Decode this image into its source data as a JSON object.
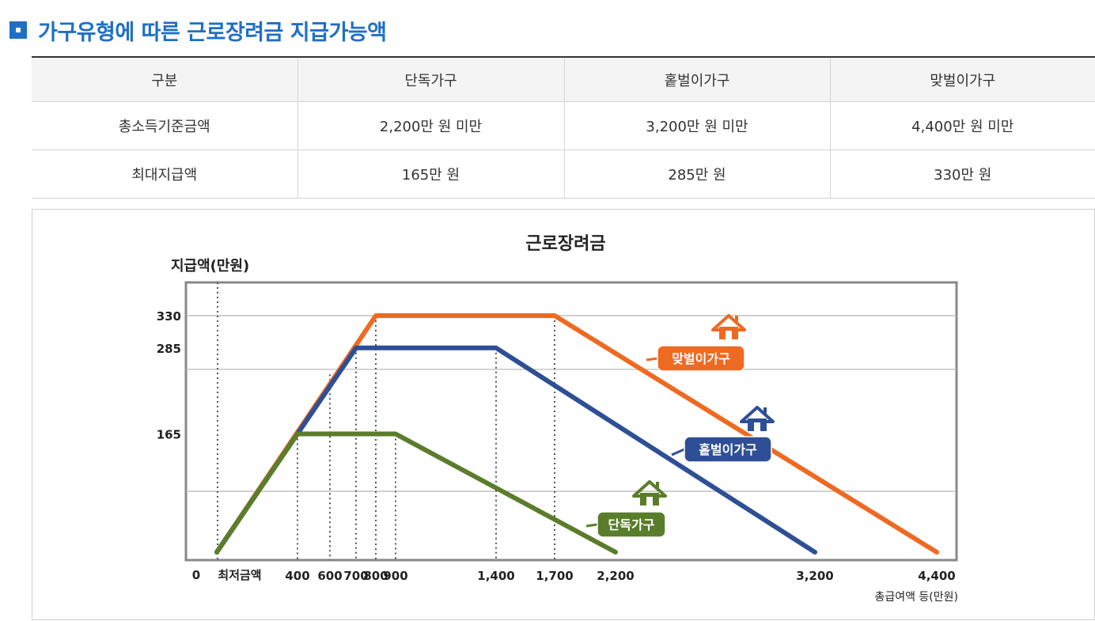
{
  "page": {
    "title": "가구유형에 따른 근로장려금 지급가능액"
  },
  "table": {
    "headers": [
      "구분",
      "단독가구",
      "홑벌이가구",
      "맞벌이가구"
    ],
    "rows": [
      [
        "총소득기준금액",
        "2,200만 원 미만",
        "3,200만 원 미만",
        "4,400만 원 미만"
      ],
      [
        "최대지급액",
        "165만 원",
        "285만 원",
        "330만 원"
      ]
    ]
  },
  "chart_data": {
    "type": "line",
    "title": "근로장려금",
    "ylabel": "지급액(만원)",
    "xlabel": "총급여액 등(만원)",
    "origin_label": "0",
    "min_wage_label": "최저금액",
    "xlim": [
      0,
      4400
    ],
    "ylim": [
      0,
      330
    ],
    "x_ticks": [
      {
        "value": 400,
        "label": "400"
      },
      {
        "value": 600,
        "label": "600"
      },
      {
        "value": 700,
        "label": "700"
      },
      {
        "value": 800,
        "label": "800"
      },
      {
        "value": 900,
        "label": "900"
      },
      {
        "value": 1400,
        "label": "1,400"
      },
      {
        "value": 1700,
        "label": "1,700"
      },
      {
        "value": 2200,
        "label": "2,200"
      },
      {
        "value": 3200,
        "label": "3,200"
      },
      {
        "value": 4400,
        "label": "4,400"
      }
    ],
    "y_ticks": [
      {
        "value": 165,
        "label": "165"
      },
      {
        "value": 285,
        "label": "285"
      },
      {
        "value": 330,
        "label": "330"
      }
    ],
    "grid": true,
    "series": [
      {
        "name": "맞벌이가구",
        "color": "#ee6a22",
        "points": [
          [
            0,
            0
          ],
          [
            800,
            330
          ],
          [
            1700,
            330
          ],
          [
            4400,
            0
          ]
        ]
      },
      {
        "name": "홑벌이가구",
        "color": "#2e4f95",
        "points": [
          [
            0,
            0
          ],
          [
            700,
            285
          ],
          [
            1400,
            285
          ],
          [
            3200,
            0
          ]
        ]
      },
      {
        "name": "단독가구",
        "color": "#5a7d2b",
        "points": [
          [
            0,
            0
          ],
          [
            400,
            165
          ],
          [
            900,
            165
          ],
          [
            2200,
            0
          ]
        ]
      }
    ],
    "legend_placement": "inline labels next to each line, with house icons"
  }
}
